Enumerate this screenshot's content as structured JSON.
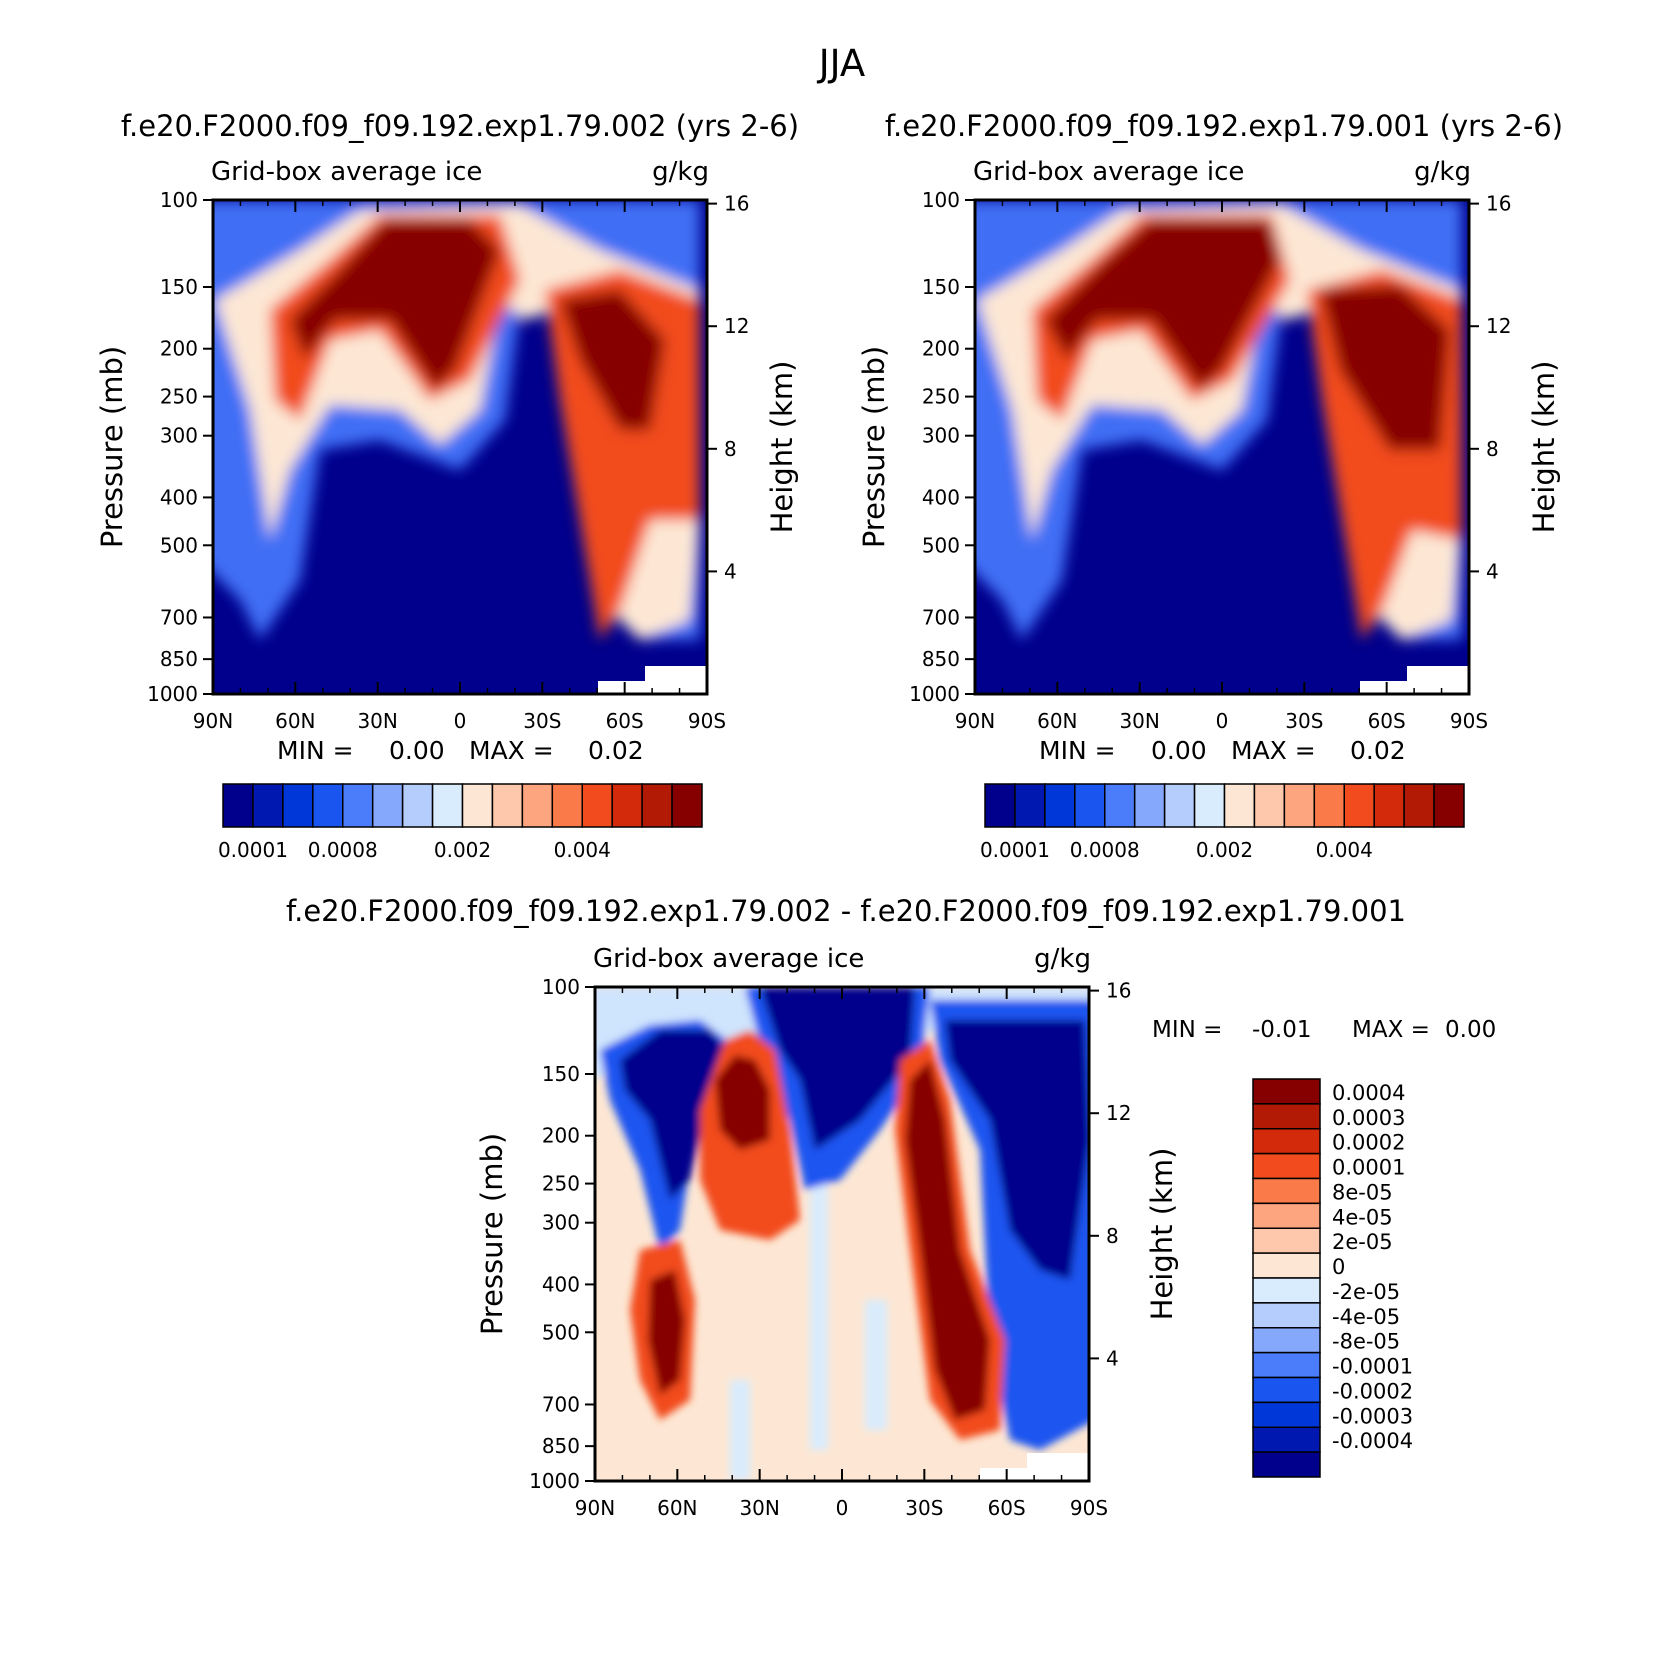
{
  "figure_title": "JJA",
  "chart_data": [
    {
      "type": "heatmap",
      "id": "panel-exp002",
      "title": "f.e20.F2000.f09_f09.192.exp1.79.002 (yrs 2-6)",
      "subtitle_left": "Grid-box average ice",
      "subtitle_right": "g/kg",
      "ylabel": "Pressure (mb)",
      "ylabel_right": "Height (km)",
      "x_ticks": [
        "90N",
        "60N",
        "30N",
        "0",
        "30S",
        "60S",
        "90S"
      ],
      "y_ticks": [
        "100",
        "150",
        "200",
        "250",
        "300",
        "400",
        "500",
        "700",
        "850",
        "1000"
      ],
      "y_ticks_right": [
        "16",
        "12",
        "8",
        "4"
      ],
      "min_label": "MIN =",
      "min_value": "0.00",
      "max_label": "MAX =",
      "max_value": "0.02",
      "colorbar_labels": [
        "0.0001",
        "0.0008",
        "0.002",
        "0.004"
      ],
      "colorbar_colors": [
        "#00008c",
        "#0018b0",
        "#0037d8",
        "#1a55f0",
        "#4b7dfa",
        "#85a8fc",
        "#b4cdfd",
        "#d9ecfd",
        "#fde7d4",
        "#fdc8ab",
        "#fca57e",
        "#fa7a4a",
        "#f24b1d",
        "#d32a0c",
        "#b21a06",
        "#870000"
      ]
    },
    {
      "type": "heatmap",
      "id": "panel-exp001",
      "title": "f.e20.F2000.f09_f09.192.exp1.79.001 (yrs 2-6)",
      "subtitle_left": "Grid-box average ice",
      "subtitle_right": "g/kg",
      "ylabel": "Pressure (mb)",
      "ylabel_right": "Height (km)",
      "x_ticks": [
        "90N",
        "60N",
        "30N",
        "0",
        "30S",
        "60S",
        "90S"
      ],
      "y_ticks": [
        "100",
        "150",
        "200",
        "250",
        "300",
        "400",
        "500",
        "700",
        "850",
        "1000"
      ],
      "y_ticks_right": [
        "16",
        "12",
        "8",
        "4"
      ],
      "min_label": "MIN =",
      "min_value": "0.00",
      "max_label": "MAX =",
      "max_value": "0.02",
      "colorbar_labels": [
        "0.0001",
        "0.0008",
        "0.002",
        "0.004"
      ],
      "colorbar_colors": [
        "#00008c",
        "#0018b0",
        "#0037d8",
        "#1a55f0",
        "#4b7dfa",
        "#85a8fc",
        "#b4cdfd",
        "#d9ecfd",
        "#fde7d4",
        "#fdc8ab",
        "#fca57e",
        "#fa7a4a",
        "#f24b1d",
        "#d32a0c",
        "#b21a06",
        "#870000"
      ]
    },
    {
      "type": "heatmap",
      "id": "panel-diff",
      "title": "f.e20.F2000.f09_f09.192.exp1.79.002 - f.e20.F2000.f09_f09.192.exp1.79.001",
      "subtitle_left": "Grid-box average ice",
      "subtitle_right": "g/kg",
      "ylabel": "Pressure (mb)",
      "ylabel_right": "Height (km)",
      "x_ticks": [
        "90N",
        "60N",
        "30N",
        "0",
        "30S",
        "60S",
        "90S"
      ],
      "y_ticks": [
        "100",
        "150",
        "200",
        "250",
        "300",
        "400",
        "500",
        "700",
        "850",
        "1000"
      ],
      "y_ticks_right": [
        "16",
        "12",
        "8",
        "4"
      ],
      "min_label": "MIN =",
      "min_value": "-0.01",
      "max_label": "MAX =",
      "max_value": "0.00",
      "colorbar_labels": [
        "0.0004",
        "0.0003",
        "0.0002",
        "0.0001",
        "8e-05",
        "4e-05",
        "2e-05",
        "0",
        "-2e-05",
        "-4e-05",
        "-8e-05",
        "-0.0001",
        "-0.0002",
        "-0.0003",
        "-0.0004"
      ],
      "colorbar_colors": [
        "#870000",
        "#b21a06",
        "#d32a0c",
        "#f24b1d",
        "#fa7a4a",
        "#fca57e",
        "#fdc8ab",
        "#fde7d4",
        "#d9ecfd",
        "#b4cdfd",
        "#85a8fc",
        "#4b7dfa",
        "#1a55f0",
        "#0037d8",
        "#0018b0",
        "#00008c"
      ]
    }
  ]
}
